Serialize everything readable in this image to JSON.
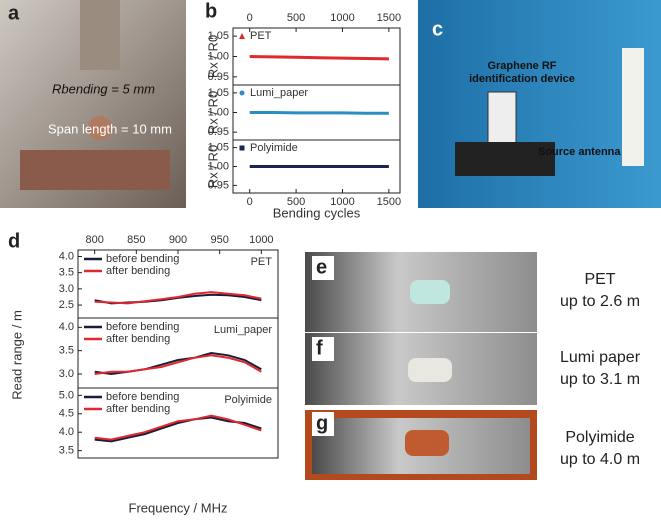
{
  "panels": {
    "a": {
      "letter": "a",
      "labels": [
        "Rbending = 5 mm",
        "Span length = 10 mm"
      ]
    },
    "b": {
      "letter": "b"
    },
    "c": {
      "letter": "c",
      "labels": [
        "Graphene RF",
        "identification device",
        "Source antenna"
      ]
    },
    "d": {
      "letter": "d"
    },
    "e": {
      "letter": "e",
      "lines": [
        "PET",
        "up to 2.6 m"
      ]
    },
    "f": {
      "letter": "f",
      "lines": [
        "Lumi paper",
        "up to 3.1 m"
      ]
    },
    "g": {
      "letter": "g",
      "lines": [
        "Polyimide",
        "up to 4.0 m"
      ]
    }
  },
  "chart_data": [
    {
      "type": "line",
      "ylabel": "Rx / R0",
      "x": [
        0,
        250,
        500,
        750,
        1000,
        1250,
        1500
      ],
      "series": [
        {
          "name": "PET",
          "color": "#e0282e",
          "values": [
            1.0,
            0.999,
            0.998,
            0.997,
            0.996,
            0.995,
            0.994
          ]
        }
      ],
      "xlim": [
        -180,
        1620
      ],
      "xticks": [
        0,
        500,
        1000,
        1500
      ],
      "ylim": [
        0.93,
        1.07
      ],
      "yticks": [
        0.95,
        {
          "value": 1,
          "label": "1.00"
        },
        1.05
      ]
    },
    {
      "type": "line",
      "ylabel": "Rx / R0",
      "x": [
        0,
        250,
        500,
        750,
        1000,
        1250,
        1500
      ],
      "series": [
        {
          "name": "Lumi_paper",
          "color": "#2a8fc0",
          "values": [
            1.0,
            1.0,
            0.999,
            0.999,
            0.999,
            0.998,
            0.998
          ]
        }
      ],
      "xlim": [
        -180,
        1620
      ],
      "ylim": [
        0.93,
        1.07
      ],
      "yticks": [
        0.95,
        {
          "value": 1,
          "label": "1.00"
        },
        1.05
      ]
    },
    {
      "type": "line",
      "ylabel": "Rx / R0",
      "xlabel": "Bending cycles",
      "x": [
        0,
        250,
        500,
        750,
        1000,
        1250,
        1500
      ],
      "series": [
        {
          "name": "Polyimide",
          "color": "#1c2550",
          "values": [
            1.0,
            1.0,
            1.0,
            1.0,
            1.0,
            1.0,
            1.0
          ]
        }
      ],
      "xlim": [
        -180,
        1620
      ],
      "xticks": [
        0,
        500,
        1000,
        1500
      ],
      "ylim": [
        0.93,
        1.07
      ],
      "yticks": [
        0.95,
        {
          "value": 1,
          "label": "1.00"
        },
        1.05
      ]
    },
    {
      "type": "line",
      "title": "PET",
      "x": [
        800,
        820,
        840,
        860,
        880,
        900,
        920,
        940,
        960,
        980,
        1000
      ],
      "series": [
        {
          "name": "before bending",
          "color": "#1c1c3a",
          "values": [
            2.65,
            2.55,
            2.58,
            2.6,
            2.65,
            2.72,
            2.78,
            2.82,
            2.8,
            2.75,
            2.65
          ]
        },
        {
          "name": "after bending",
          "color": "#e0282e",
          "values": [
            2.6,
            2.58,
            2.55,
            2.62,
            2.68,
            2.75,
            2.85,
            2.9,
            2.85,
            2.8,
            2.7
          ]
        }
      ],
      "xlim": [
        780,
        1020
      ],
      "xticks": [
        800,
        850,
        900,
        950,
        1000
      ],
      "ylim": [
        2.1,
        4.2
      ],
      "yticks": [
        2.5,
        {
          "value": 3,
          "label": "3.0"
        },
        3.5,
        {
          "value": 4,
          "label": "4.0"
        }
      ]
    },
    {
      "type": "line",
      "title": "Lumi_paper",
      "ylabel": "Read range / m",
      "x": [
        800,
        820,
        840,
        860,
        880,
        900,
        920,
        940,
        960,
        980,
        1000
      ],
      "series": [
        {
          "name": "before bending",
          "color": "#1c1c3a",
          "values": [
            3.05,
            3.0,
            3.05,
            3.1,
            3.2,
            3.3,
            3.35,
            3.45,
            3.4,
            3.3,
            3.1
          ]
        },
        {
          "name": "after bending",
          "color": "#e0282e",
          "values": [
            3.0,
            3.05,
            3.05,
            3.1,
            3.15,
            3.25,
            3.35,
            3.4,
            3.35,
            3.25,
            3.05
          ]
        }
      ],
      "xlim": [
        780,
        1020
      ],
      "ylim": [
        2.7,
        4.2
      ],
      "yticks": [
        {
          "value": 3,
          "label": "3.0"
        },
        3.5,
        {
          "value": 4,
          "label": "4.0"
        }
      ]
    },
    {
      "type": "line",
      "title": "Polyimide",
      "xlabel": "Frequency / MHz",
      "x": [
        800,
        820,
        840,
        860,
        880,
        900,
        920,
        940,
        960,
        980,
        1000
      ],
      "series": [
        {
          "name": "before bending",
          "color": "#1c1c3a",
          "values": [
            3.8,
            3.75,
            3.85,
            3.95,
            4.1,
            4.25,
            4.35,
            4.4,
            4.3,
            4.25,
            4.1
          ]
        },
        {
          "name": "after bending",
          "color": "#e0282e",
          "values": [
            3.85,
            3.8,
            3.9,
            4.0,
            4.15,
            4.3,
            4.35,
            4.45,
            4.35,
            4.2,
            4.05
          ]
        }
      ],
      "xlim": [
        780,
        1020
      ],
      "ylim": [
        3.3,
        5.2
      ],
      "yticks": [
        3.5,
        {
          "value": 4,
          "label": "4.0"
        },
        4.5,
        {
          "value": 5,
          "label": "5.0"
        }
      ]
    }
  ]
}
